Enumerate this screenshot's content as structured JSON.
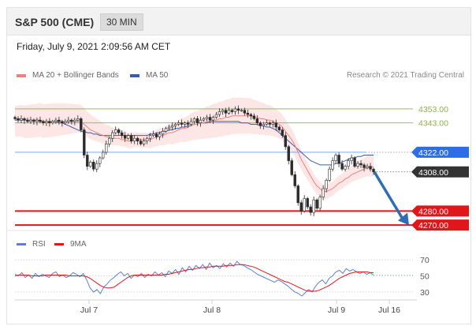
{
  "header": {
    "title": "S&P 500 (CME)",
    "timeframe": "30 MIN"
  },
  "datetime": "Friday, July 9, 2021 2:09:56 AM CET",
  "legend": {
    "ma20": {
      "label": "MA 20 + Bollinger Bands",
      "color": "#f08080"
    },
    "ma50": {
      "label": "MA 50",
      "color": "#3a5da8"
    }
  },
  "research": "Research © 2021 Trading Central",
  "rsi_legend": {
    "rsi": {
      "label": "RSI",
      "color": "#5b7fd4"
    },
    "ma9": {
      "label": "9MA",
      "color": "#e0161b"
    }
  },
  "chart_data": [
    {
      "type": "candlestick",
      "title": "",
      "x_ticks": [
        "Jul 7",
        "Jul 8",
        "Jul 9",
        "Jul 16"
      ],
      "ylim": [
        4265,
        4362
      ],
      "price_levels": [
        {
          "label": "4353.00",
          "value": 4353,
          "color": "#8bb34a",
          "style": "thin"
        },
        {
          "label": "4343.00",
          "value": 4343,
          "color": "#8bb34a",
          "style": "thin"
        },
        {
          "label": "4322.00",
          "value": 4322,
          "color": "#2b6fe6",
          "style": "blue"
        },
        {
          "label": "4308.00",
          "value": 4308,
          "color": "#333333",
          "style": "current"
        },
        {
          "label": "4280.00",
          "value": 4280,
          "color": "#e0161b",
          "style": "red"
        },
        {
          "label": "4270.00",
          "value": 4270,
          "color": "#e0161b",
          "style": "red"
        }
      ],
      "close": [
        4346,
        4345,
        4346,
        4345,
        4344,
        4345,
        4344,
        4345,
        4344,
        4343,
        4344,
        4343,
        4344,
        4345,
        4344,
        4343,
        4344,
        4345,
        4344,
        4345,
        4346,
        4338,
        4320,
        4312,
        4315,
        4310,
        4314,
        4318,
        4322,
        4328,
        4332,
        4336,
        4338,
        4336,
        4334,
        4332,
        4334,
        4330,
        4332,
        4330,
        4328,
        4330,
        4332,
        4334,
        4335,
        4333,
        4335,
        4337,
        4339,
        4340,
        4341,
        4342,
        4343,
        4342,
        4343,
        4342,
        4344,
        4346,
        4343,
        4345,
        4346,
        4347,
        4345,
        4347,
        4349,
        4351,
        4352,
        4350,
        4352,
        4351,
        4353,
        4352,
        4352,
        4350,
        4349,
        4348,
        4346,
        4343,
        4341,
        4342,
        4343,
        4342,
        4343,
        4340,
        4338,
        4334,
        4326,
        4316,
        4306,
        4298,
        4286,
        4280,
        4289,
        4283,
        4279,
        4288,
        4282,
        4290,
        4296,
        4302,
        4310,
        4316,
        4320,
        4314,
        4310,
        4312,
        4316,
        4318,
        4312,
        4314,
        4313,
        4311,
        4312,
        4310,
        4308
      ],
      "ma20": [
        4346,
        4346,
        4346,
        4345,
        4345,
        4345,
        4345,
        4345,
        4345,
        4344,
        4344,
        4344,
        4344,
        4344,
        4344,
        4344,
        4344,
        4344,
        4344,
        4344,
        4344,
        4344,
        4342,
        4340,
        4338,
        4337,
        4336,
        4335,
        4334,
        4333,
        4333,
        4332,
        4332,
        4332,
        4331,
        4331,
        4330,
        4330,
        4331,
        4331,
        4331,
        4331,
        4331,
        4331,
        4332,
        4333,
        4334,
        4334,
        4335,
        4336,
        4336,
        4337,
        4338,
        4339,
        4339,
        4340,
        4341,
        4342,
        4342,
        4343,
        4343,
        4344,
        4344,
        4345,
        4345,
        4346,
        4346,
        4347,
        4347,
        4348,
        4348,
        4348,
        4348,
        4348,
        4348,
        4348,
        4347,
        4347,
        4346,
        4346,
        4345,
        4345,
        4344,
        4343,
        4342,
        4340,
        4337,
        4334,
        4331,
        4327,
        4322,
        4317,
        4313,
        4309,
        4305,
        4301,
        4298,
        4296,
        4294,
        4294,
        4295,
        4296,
        4298,
        4300,
        4301,
        4303,
        4304,
        4306,
        4307,
        4308,
        4309,
        4310,
        4311,
        4311,
        4312
      ],
      "ma50": [
        4345,
        4345,
        4345,
        4345,
        4345,
        4345,
        4345,
        4345,
        4344,
        4344,
        4344,
        4344,
        4344,
        4344,
        4343,
        4343,
        4342,
        4341,
        4340,
        4339,
        4338,
        4337,
        4337,
        4336,
        4336,
        4335,
        4335,
        4334,
        4334,
        4334,
        4334,
        4334,
        4334,
        4334,
        4334,
        4334,
        4334,
        4334,
        4334,
        4334,
        4334,
        4334,
        4334,
        4335,
        4335,
        4336,
        4336,
        4337,
        4337,
        4338,
        4338,
        4339,
        4339,
        4340,
        4340,
        4341,
        4341,
        4342,
        4342,
        4343,
        4343,
        4343,
        4344,
        4344,
        4344,
        4344,
        4344,
        4344,
        4344,
        4344,
        4344,
        4344,
        4343,
        4343,
        4343,
        4342,
        4342,
        4342,
        4341,
        4341,
        4340,
        4340,
        4339,
        4338,
        4336,
        4334,
        4332,
        4330,
        4328,
        4326,
        4324,
        4322,
        4320,
        4318,
        4316,
        4315,
        4314,
        4313,
        4313,
        4313,
        4313,
        4313,
        4314,
        4314,
        4315,
        4316,
        4317,
        4318,
        4318,
        4319,
        4319,
        4320,
        4320,
        4320,
        4320
      ]
    },
    {
      "type": "line",
      "title": "",
      "ylim": [
        23,
        77
      ],
      "y_ticks": [
        "70",
        "50",
        "30"
      ],
      "rsi": [
        52,
        50,
        54,
        48,
        51,
        47,
        53,
        49,
        52,
        50,
        48,
        53,
        55,
        49,
        51,
        48,
        50,
        54,
        52,
        49,
        53,
        45,
        35,
        30,
        33,
        28,
        36,
        40,
        45,
        48,
        52,
        55,
        50,
        53,
        47,
        51,
        49,
        53,
        48,
        52,
        50,
        55,
        51,
        54,
        49,
        56,
        53,
        58,
        52,
        60,
        55,
        62,
        57,
        63,
        59,
        64,
        58,
        66,
        60,
        63,
        59,
        65,
        61,
        66,
        62,
        68,
        64,
        63,
        60,
        58,
        55,
        52,
        50,
        48,
        46,
        44,
        42,
        45,
        43,
        40,
        37,
        33,
        30,
        28,
        25,
        29,
        33,
        30,
        37,
        42,
        45,
        40,
        47,
        50,
        55,
        57,
        53,
        59,
        56,
        58,
        55,
        53,
        55,
        52,
        54,
        51
      ],
      "ma9": [
        50,
        51,
        51,
        51,
        51,
        50,
        50,
        50,
        50,
        51,
        51,
        51,
        51,
        51,
        51,
        51,
        50,
        50,
        50,
        50,
        50,
        49,
        47,
        44,
        41,
        38,
        36,
        35,
        35,
        36,
        39,
        42,
        45,
        48,
        50,
        51,
        51,
        51,
        51,
        51,
        51,
        51,
        51,
        51,
        52,
        52,
        53,
        54,
        55,
        56,
        57,
        58,
        58,
        59,
        60,
        60,
        61,
        61,
        62,
        62,
        62,
        62,
        63,
        63,
        63,
        64,
        64,
        64,
        63,
        62,
        61,
        59,
        57,
        55,
        53,
        51,
        49,
        47,
        45,
        43,
        42,
        40,
        38,
        36,
        34,
        32,
        31,
        31,
        31,
        32,
        34,
        36,
        38,
        41,
        44,
        47,
        49,
        51,
        53,
        54,
        55,
        55,
        55,
        55,
        54,
        54
      ]
    }
  ]
}
